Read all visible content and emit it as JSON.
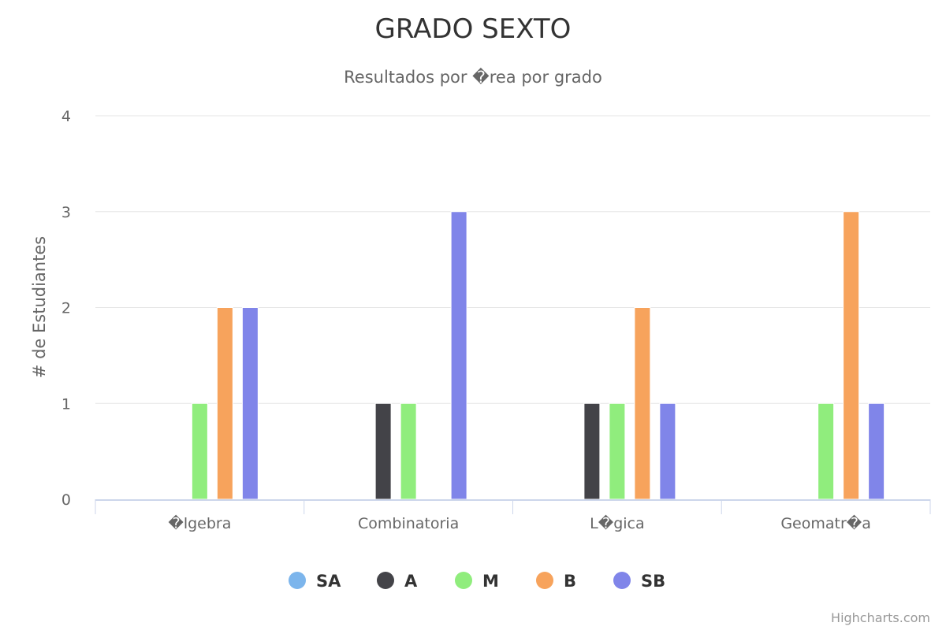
{
  "chart_data": {
    "type": "bar",
    "title": "GRADO SEXTO",
    "subtitle": "Resultados por �rea por grado",
    "xlabel": "",
    "ylabel": "# de Estudiantes",
    "ylim": [
      0,
      4
    ],
    "yticks": [
      "0",
      "1",
      "2",
      "3",
      "4"
    ],
    "grid": true,
    "legend_position": "bottom-center",
    "categories": [
      "�lgebra",
      "Combinatoria",
      "L�gica",
      "Geomatr�a"
    ],
    "series": [
      {
        "name": "SA",
        "color": "#7cb5ec",
        "values": [
          0,
          0,
          0,
          0
        ]
      },
      {
        "name": "A",
        "color": "#434348",
        "values": [
          0,
          1,
          1,
          0
        ]
      },
      {
        "name": "M",
        "color": "#90ed7d",
        "values": [
          1,
          1,
          1,
          1
        ]
      },
      {
        "name": "B",
        "color": "#f7a35c",
        "values": [
          2,
          0,
          2,
          3
        ]
      },
      {
        "name": "SB",
        "color": "#8085e9",
        "values": [
          2,
          3,
          1,
          1
        ]
      }
    ]
  },
  "credits": "Highcharts.com"
}
